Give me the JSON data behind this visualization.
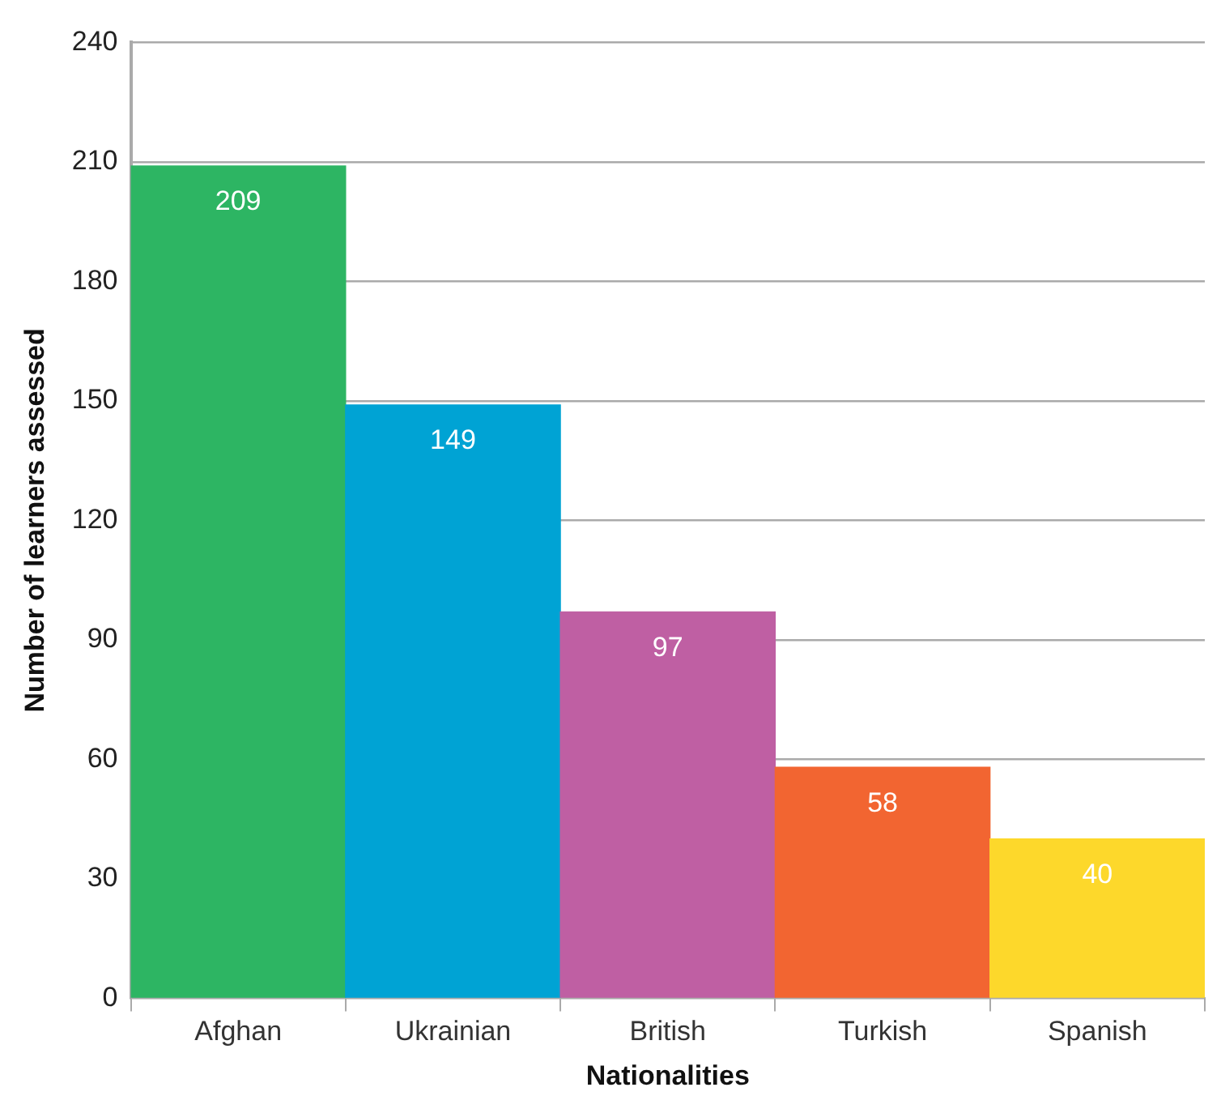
{
  "chart_data": {
    "type": "bar",
    "xlabel": "Nationalities",
    "ylabel": "Number of learners assessed",
    "categories": [
      "Afghan",
      "Ukrainian",
      "British",
      "Turkish",
      "Spanish"
    ],
    "values": [
      209,
      149,
      97,
      58,
      40
    ],
    "colors": [
      "#2db563",
      "#00a3d4",
      "#bf5fa3",
      "#f26531",
      "#fdd82b"
    ],
    "ylim": [
      0,
      240
    ],
    "yticks": [
      0,
      30,
      60,
      90,
      120,
      150,
      180,
      210,
      240
    ],
    "grid": "y",
    "data_labels": true
  }
}
